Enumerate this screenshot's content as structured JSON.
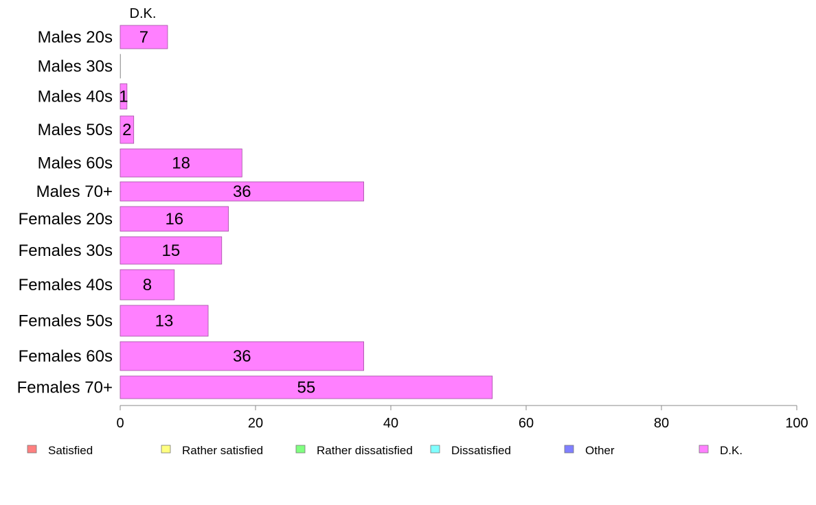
{
  "chart_data": {
    "type": "bar",
    "orientation": "horizontal",
    "series_title": "D.K.",
    "categories": [
      "Males 20s",
      "Males 30s",
      "Males 40s",
      "Males 50s",
      "Males 60s",
      "Males 70+",
      "Females 20s",
      "Females 30s",
      "Females 40s",
      "Females 50s",
      "Females 60s",
      "Females 70+"
    ],
    "series": [
      {
        "name": "D.K.",
        "color": "#ff80ff",
        "values": [
          7,
          0,
          1,
          2,
          18,
          36,
          16,
          15,
          8,
          13,
          36,
          55
        ],
        "labels": [
          "7",
          "",
          "1",
          "2",
          "18",
          "36",
          "16",
          "15",
          "8",
          "13",
          "36",
          "55"
        ]
      }
    ],
    "xlim": [
      0,
      100
    ],
    "xticks": [
      0,
      20,
      40,
      60,
      80,
      100
    ],
    "grid": false,
    "legend_position": "bottom",
    "legend": [
      {
        "label": "Satisfied",
        "color": "#ff8080"
      },
      {
        "label": "Rather satisfied",
        "color": "#ffff80"
      },
      {
        "label": "Rather dissatisfied",
        "color": "#80ff80"
      },
      {
        "label": "Dissatisfied",
        "color": "#80ffff"
      },
      {
        "label": "Other",
        "color": "#8080ff"
      },
      {
        "label": "D.K.",
        "color": "#ff80ff"
      }
    ]
  }
}
